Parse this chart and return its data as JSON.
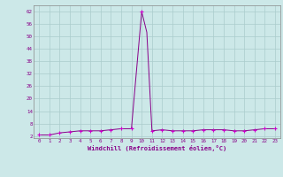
{
  "x": [
    0,
    1,
    2,
    3,
    4,
    5,
    6,
    7,
    8,
    9,
    10,
    10.5,
    11,
    12,
    13,
    14,
    15,
    16,
    17,
    18,
    19,
    20,
    21,
    22,
    23
  ],
  "y": [
    2.5,
    2.5,
    3.5,
    4.0,
    4.5,
    4.5,
    4.5,
    5.0,
    5.5,
    5.5,
    62.0,
    52.0,
    4.5,
    5.0,
    4.5,
    4.5,
    4.5,
    5.0,
    5.0,
    5.0,
    4.5,
    4.5,
    5.0,
    5.5,
    5.5
  ],
  "x_markers": [
    0,
    1,
    2,
    3,
    4,
    5,
    6,
    7,
    8,
    9,
    10,
    11,
    12,
    13,
    14,
    15,
    16,
    17,
    18,
    19,
    20,
    21,
    22,
    23
  ],
  "y_markers": [
    2.5,
    2.5,
    3.5,
    4.0,
    4.5,
    4.5,
    4.5,
    5.0,
    5.5,
    5.5,
    62.0,
    4.5,
    5.0,
    4.5,
    4.5,
    4.5,
    5.0,
    5.0,
    5.0,
    4.5,
    4.5,
    5.0,
    5.5,
    5.5
  ],
  "line_color": "#880088",
  "marker_color": "#cc00cc",
  "bg_color": "#cce8e8",
  "grid_color": "#aacccc",
  "xlabel": "Windchill (Refroidissement éolien,°C)",
  "xlabel_color": "#880088",
  "yticks": [
    2,
    8,
    14,
    20,
    26,
    32,
    38,
    44,
    50,
    56,
    62
  ],
  "xticks": [
    0,
    1,
    2,
    3,
    4,
    5,
    6,
    7,
    8,
    9,
    10,
    11,
    12,
    13,
    14,
    15,
    16,
    17,
    18,
    19,
    20,
    21,
    22,
    23
  ],
  "ylim": [
    1.0,
    65.0
  ],
  "xlim": [
    -0.5,
    23.5
  ]
}
